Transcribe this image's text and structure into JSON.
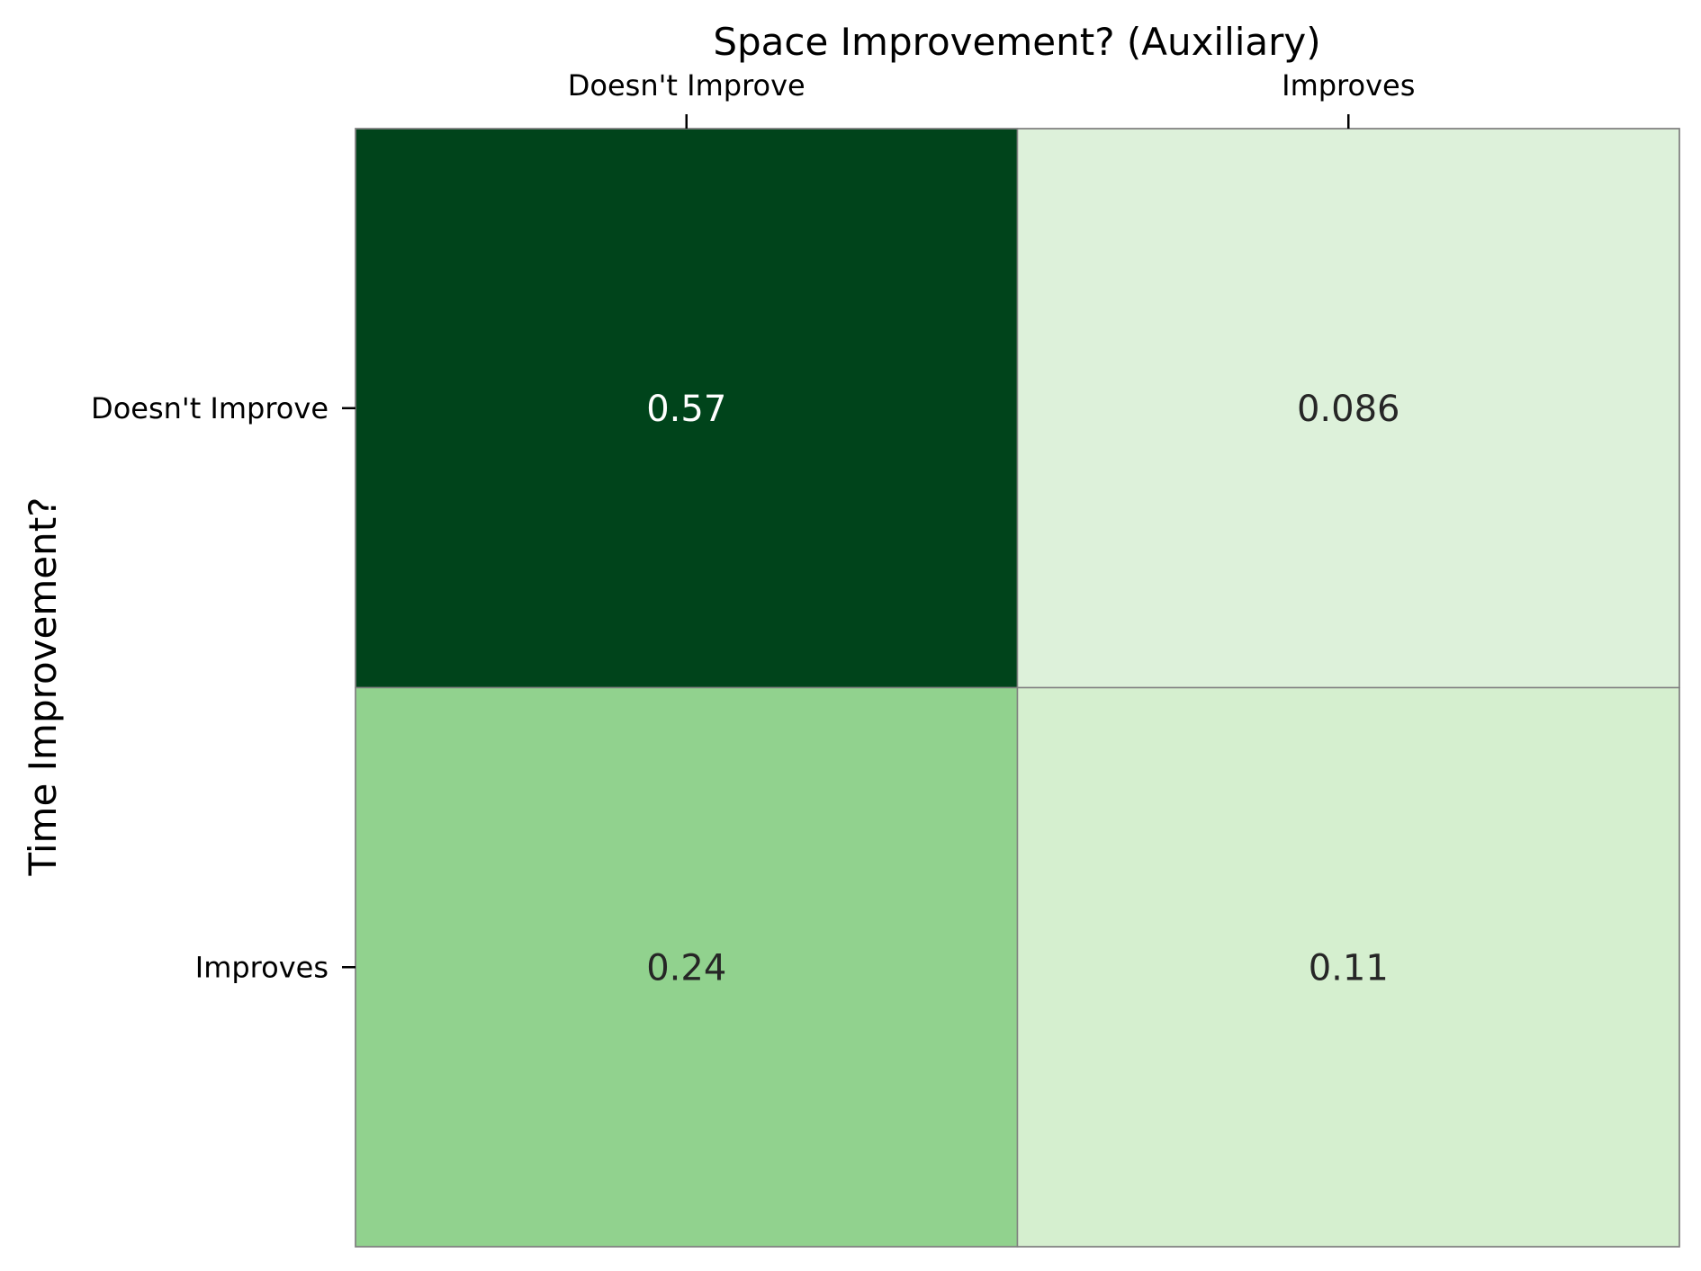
{
  "chart_data": {
    "type": "heatmap",
    "title": "Space Improvement? (Auxiliary)",
    "xlabel": "Space Improvement? (Auxiliary)",
    "ylabel": "Time Improvement?",
    "x_categories": [
      "Doesn't Improve",
      "Improves"
    ],
    "y_categories": [
      "Doesn't Improve",
      "Improves"
    ],
    "values": [
      [
        0.57,
        0.086
      ],
      [
        0.24,
        0.11
      ]
    ],
    "value_labels": [
      [
        "0.57",
        "0.086"
      ],
      [
        "0.24",
        "0.11"
      ]
    ],
    "x_axis_position": "top",
    "colormap": "Greens",
    "colorbar": false,
    "grid": false,
    "colors": {
      "cell_colors": [
        [
          "#00441b",
          "#ddf1da"
        ],
        [
          "#91d28e",
          "#d5efcf"
        ]
      ],
      "dark_text": "#262626",
      "light_text": "#ffffff",
      "cell_border": "#808080"
    }
  }
}
